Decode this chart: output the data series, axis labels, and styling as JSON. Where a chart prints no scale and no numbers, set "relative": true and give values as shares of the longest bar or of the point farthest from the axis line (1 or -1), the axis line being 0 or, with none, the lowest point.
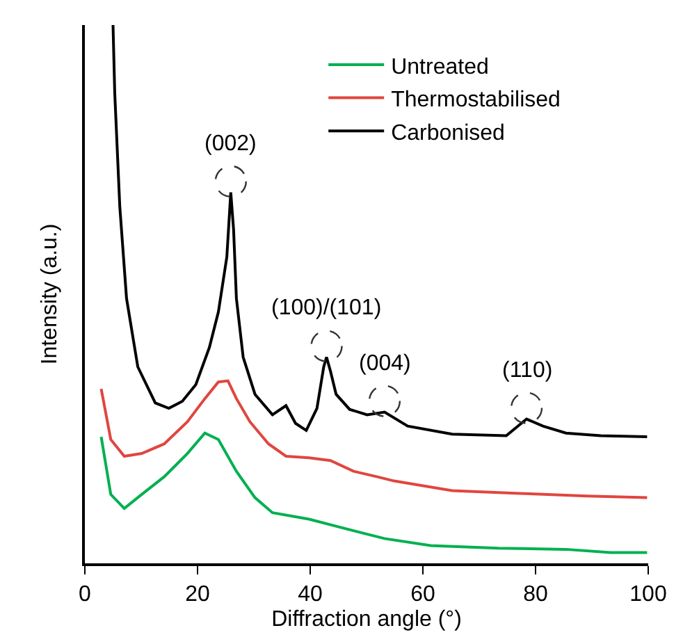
{
  "chart_data": {
    "type": "line",
    "relative": true,
    "xlabel": "Diffraction angle (°)",
    "ylabel": "Intensity (a.u.)",
    "xlim": [
      0,
      100
    ],
    "xticks": [
      0,
      20,
      40,
      60,
      80,
      100
    ],
    "tick_labels": "x",
    "legend": "top right",
    "marker": "none",
    "line_style": "solid",
    "series": [
      {
        "name": "Untreated",
        "color": "#00b050",
        "x": [
          2.9,
          4.6,
          7.0,
          10.1,
          14.1,
          18.2,
          21.3,
          23.7,
          26.9,
          30.2,
          33.3,
          39.8,
          44.6,
          49.4,
          53.2,
          61.4,
          73.4,
          85.4,
          93.3,
          99.8
        ],
        "values": [
          0.235,
          0.128,
          0.102,
          0.128,
          0.161,
          0.204,
          0.242,
          0.23,
          0.171,
          0.122,
          0.094,
          0.082,
          0.069,
          0.056,
          0.046,
          0.033,
          0.028,
          0.026,
          0.02,
          0.02
        ]
      },
      {
        "name": "Thermostabilised",
        "color": "#e0463f",
        "x": [
          2.9,
          4.6,
          7.0,
          10.1,
          14.1,
          18.2,
          21.3,
          23.7,
          25.4,
          26.9,
          29.3,
          32.6,
          35.7,
          39.8,
          43.6,
          47.7,
          51.8,
          54.9,
          65.2,
          77.2,
          89.2,
          99.8
        ],
        "values": [
          0.324,
          0.23,
          0.199,
          0.204,
          0.222,
          0.263,
          0.306,
          0.337,
          0.339,
          0.306,
          0.263,
          0.222,
          0.199,
          0.196,
          0.191,
          0.171,
          0.161,
          0.153,
          0.135,
          0.13,
          0.125,
          0.122
        ]
      },
      {
        "name": "Carbonised",
        "color": "#000000",
        "x": [
          5.0,
          5.3,
          6.2,
          7.4,
          9.4,
          12.5,
          14.9,
          17.3,
          19.7,
          22.1,
          23.7,
          25.2,
          25.9,
          26.4,
          26.9,
          28.1,
          30.2,
          33.3,
          35.7,
          37.4,
          39.3,
          41.2,
          42.4,
          42.9,
          43.6,
          44.6,
          47.0,
          50.1,
          53.2,
          57.3,
          65.2,
          74.8,
          78.4,
          81.3,
          85.4,
          91.6,
          99.8
        ],
        "values": [
          1.0,
          0.875,
          0.663,
          0.492,
          0.365,
          0.298,
          0.288,
          0.301,
          0.332,
          0.401,
          0.467,
          0.569,
          0.689,
          0.62,
          0.492,
          0.383,
          0.314,
          0.276,
          0.293,
          0.26,
          0.247,
          0.288,
          0.365,
          0.383,
          0.357,
          0.314,
          0.286,
          0.276,
          0.281,
          0.255,
          0.24,
          0.237,
          0.268,
          0.255,
          0.242,
          0.237,
          0.235
        ]
      }
    ],
    "annotations": [
      {
        "text": "(002)",
        "x": 25.9,
        "y": 0.689
      },
      {
        "text": "(100)/(101)",
        "x": 42.9,
        "y": 0.383
      },
      {
        "text": "(004)",
        "x": 53.2,
        "y": 0.281
      },
      {
        "text": "(110)",
        "x": 78.4,
        "y": 0.268
      }
    ]
  }
}
